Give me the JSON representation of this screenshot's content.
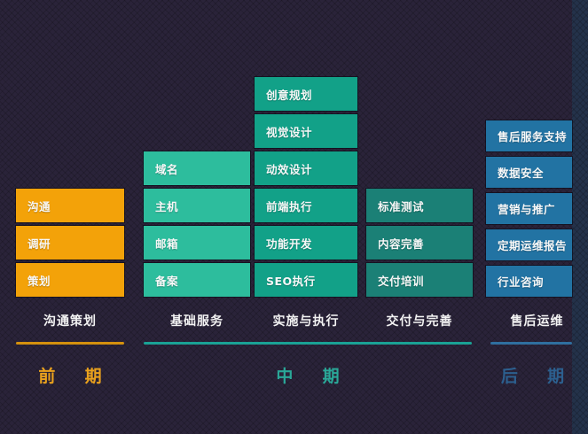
{
  "colors": {
    "background": "#2a2339",
    "right_band": "#24324a",
    "orange": "#f3a209",
    "teal_light": "#2dbd9d",
    "teal_bright": "#12a188",
    "teal_dark": "#1b8076",
    "blue": "#2273a3",
    "line_orange": "#d4910e",
    "line_teal": "#1aa295",
    "line_blue": "#2f6f9f",
    "phase_orange": "#e9a11d",
    "phase_teal": "#2aa898",
    "phase_blue": "#2c5f8e"
  },
  "columns": [
    {
      "label": "沟通策划",
      "color": "#f3a209",
      "blocks": [
        "沟通",
        "调研",
        "策划"
      ]
    },
    {
      "label": "基础服务",
      "color": "#2dbd9d",
      "blocks": [
        "域名",
        "主机",
        "邮箱",
        "备案"
      ]
    },
    {
      "label": "实施与执行",
      "color": "#12a188",
      "blocks": [
        "创意规划",
        "视觉设计",
        "动效设计",
        "前端执行",
        "功能开发",
        "SEO执行"
      ]
    },
    {
      "label": "交付与完善",
      "color": "#1b8076",
      "blocks": [
        "标准测试",
        "内容完善",
        "交付培训"
      ]
    },
    {
      "label": "售后运维",
      "color": "#2273a3",
      "blocks": [
        "售后服务支持",
        "数据安全",
        "营销与推广",
        "定期运维报告",
        "行业咨询"
      ]
    }
  ],
  "phases": [
    {
      "label": "前 期",
      "color": "#e9a11d",
      "line_color": "#d4910e"
    },
    {
      "label": "中 期",
      "color": "#2aa898",
      "line_color": "#1aa295"
    },
    {
      "label": "后 期",
      "color": "#2c5f8e",
      "line_color": "#2f6f9f"
    }
  ]
}
